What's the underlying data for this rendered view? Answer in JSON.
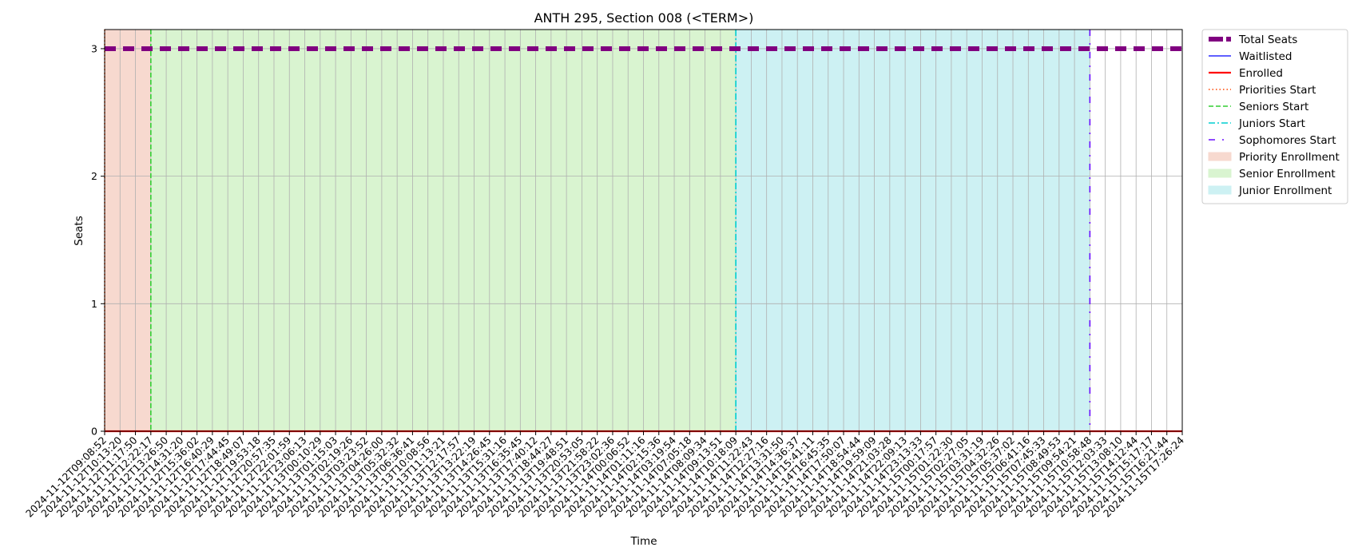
{
  "chart_data": {
    "type": "line",
    "title": "ANTH 295, Section 008 (<TERM>)",
    "xlabel": "Time",
    "ylabel": "Seats",
    "ylim": [
      0,
      3.15
    ],
    "yticks": [
      0,
      1,
      2,
      3
    ],
    "grid": true,
    "legend_placement": "outside-top-right",
    "x": [
      "2024-11-12T09:08:52",
      "2024-11-12T10:13:20",
      "2024-11-12T11:17:50",
      "2024-11-12T12:22:17",
      "2024-11-12T13:26:50",
      "2024-11-12T14:31:20",
      "2024-11-12T15:36:02",
      "2024-11-12T16:40:29",
      "2024-11-12T17:44:45",
      "2024-11-12T18:49:07",
      "2024-11-12T19:53:18",
      "2024-11-12T20:57:35",
      "2024-11-12T22:01:59",
      "2024-11-12T23:06:13",
      "2024-11-13T00:10:29",
      "2024-11-13T01:15:03",
      "2024-11-13T02:19:26",
      "2024-11-13T03:23:52",
      "2024-11-13T04:26:00",
      "2024-11-13T05:32:32",
      "2024-11-13T06:36:41",
      "2024-11-13T10:08:56",
      "2024-11-13T11:13:21",
      "2024-11-13T12:17:57",
      "2024-11-13T13:22:19",
      "2024-11-13T14:26:45",
      "2024-11-13T15:31:16",
      "2024-11-13T16:35:45",
      "2024-11-13T17:40:12",
      "2024-11-13T18:44:27",
      "2024-11-13T19:48:51",
      "2024-11-13T20:53:05",
      "2024-11-13T21:58:22",
      "2024-11-13T23:02:36",
      "2024-11-14T00:06:52",
      "2024-11-14T01:11:16",
      "2024-11-14T02:15:36",
      "2024-11-14T03:19:54",
      "2024-11-14T07:05:18",
      "2024-11-14T08:09:34",
      "2024-11-14T09:13:51",
      "2024-11-14T10:18:09",
      "2024-11-14T11:22:43",
      "2024-11-14T12:27:16",
      "2024-11-14T13:31:50",
      "2024-11-14T14:36:37",
      "2024-11-14T15:41:11",
      "2024-11-14T16:45:35",
      "2024-11-14T17:50:07",
      "2024-11-14T18:54:44",
      "2024-11-14T19:59:09",
      "2024-11-14T21:03:28",
      "2024-11-14T22:09:13",
      "2024-11-14T23:13:33",
      "2024-11-15T00:17:57",
      "2024-11-15T01:22:30",
      "2024-11-15T02:27:05",
      "2024-11-15T03:31:19",
      "2024-11-15T04:32:26",
      "2024-11-15T05:37:02",
      "2024-11-15T06:41:16",
      "2024-11-15T07:45:33",
      "2024-11-15T08:49:53",
      "2024-11-15T09:54:21",
      "2024-11-15T10:58:48",
      "2024-11-15T12:03:33",
      "2024-11-15T13:08:10",
      "2024-11-15T14:12:44",
      "2024-11-15T15:17:17",
      "2024-11-15T16:21:44",
      "2024-11-15T17:26:24"
    ],
    "series": [
      {
        "name": "Total Seats",
        "color": "#800080",
        "style": "dashed-thick",
        "constant": 3
      },
      {
        "name": "Waitlisted",
        "color": "#0000ff",
        "style": "solid-thin",
        "constant": 0
      },
      {
        "name": "Enrolled",
        "color": "#ff0000",
        "style": "solid",
        "constant": 0
      }
    ],
    "vlines": [
      {
        "name": "Priorities Start",
        "color": "#ff4500",
        "style": "dotted",
        "at": "2024-11-12T09:08:52"
      },
      {
        "name": "Seniors Start",
        "color": "#32cd32",
        "style": "dashed",
        "at": "2024-11-12T12:22:17"
      },
      {
        "name": "Juniors Start",
        "color": "#00ced1",
        "style": "dashdot",
        "at": "2024-11-14T10:18:09"
      },
      {
        "name": "Sophomores Start",
        "color": "#6a0dff",
        "style": "loosely-dashdot",
        "at": "2024-11-15T10:58:48"
      }
    ],
    "spans": [
      {
        "name": "Priority Enrollment",
        "color": "#f7d9cf",
        "from": "2024-11-12T09:08:52",
        "to": "2024-11-12T12:22:17"
      },
      {
        "name": "Senior Enrollment",
        "color": "#d9f4d0",
        "from": "2024-11-12T12:22:17",
        "to": "2024-11-14T10:18:09"
      },
      {
        "name": "Junior Enrollment",
        "color": "#cdf1f3",
        "from": "2024-11-14T10:18:09",
        "to": "2024-11-15T10:58:48"
      }
    ]
  }
}
